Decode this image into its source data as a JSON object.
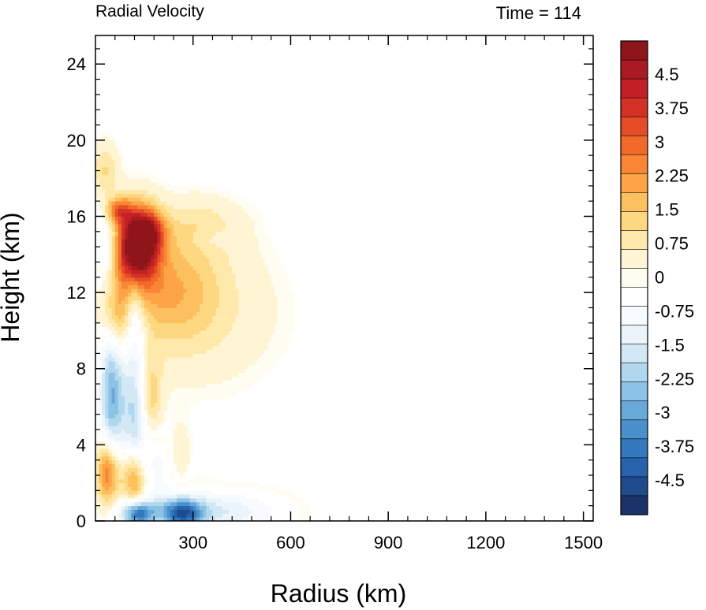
{
  "chart_data": {
    "type": "heatmap",
    "title_left": "Radial Velocity",
    "title_right": "Time = 114",
    "xlabel": "Radius (km)",
    "ylabel": "Height (km)",
    "xlim": [
      0,
      1530
    ],
    "ylim": [
      0,
      25.5
    ],
    "xticks": [
      300,
      600,
      900,
      1200,
      1500
    ],
    "yticks": [
      0,
      4,
      8,
      12,
      16,
      20,
      24
    ],
    "colorbar": {
      "range": [
        -5.25,
        5.25
      ],
      "step": 0.25,
      "tick_labels": [
        "4.5",
        "3.75",
        "3",
        "2.25",
        "1.5",
        "0.75",
        "0",
        "-0.75",
        "-1.5",
        "-2.25",
        "-3",
        "-3.75",
        "-4.5"
      ],
      "tick_values": [
        4.5,
        3.75,
        3,
        2.25,
        1.5,
        0.75,
        0,
        -0.75,
        -1.5,
        -2.25,
        -3,
        -3.75,
        -4.5
      ],
      "colors": [
        "#1a3368",
        "#1f4a8c",
        "#2763ad",
        "#3478bd",
        "#4a90cc",
        "#68a9da",
        "#8cc2e6",
        "#b0d7ee",
        "#d2e8f5",
        "#ebf4fa",
        "#f7fbfd",
        "#ffffff",
        "#fffdf2",
        "#fff5d4",
        "#ffe9aa",
        "#fed880",
        "#fdc05e",
        "#fca446",
        "#f98634",
        "#f26a2a",
        "#e44d26",
        "#d43126",
        "#c22026",
        "#ab1a22",
        "#8e1519"
      ]
    },
    "features": [
      {
        "r": 125,
        "z": 14.4,
        "sr": 45,
        "sz": 1.4,
        "v": 5.6
      },
      {
        "r": 165,
        "z": 15.2,
        "sr": 35,
        "sz": 0.8,
        "v": 2.5
      },
      {
        "r": 70,
        "z": 16.3,
        "sr": 30,
        "sz": 0.5,
        "v": 2.6
      },
      {
        "r": 220,
        "z": 12.2,
        "sr": 110,
        "sz": 2.0,
        "v": 1.6
      },
      {
        "r": 330,
        "z": 11.0,
        "sr": 160,
        "sz": 2.6,
        "v": 0.55
      },
      {
        "r": 320,
        "z": 15.5,
        "sr": 90,
        "sz": 1.0,
        "v": 0.7
      },
      {
        "r": 60,
        "z": 10.8,
        "sr": 30,
        "sz": 1.5,
        "v": 2.2
      },
      {
        "r": 30,
        "z": 18.3,
        "sr": 28,
        "sz": 1.0,
        "v": 1.2
      },
      {
        "r": 40,
        "z": 2.6,
        "sr": 25,
        "sz": 1.3,
        "v": 3.6
      },
      {
        "r": 120,
        "z": 2.2,
        "sr": 28,
        "sz": 1.2,
        "v": 3.1
      },
      {
        "r": 165,
        "z": 6.5,
        "sr": 25,
        "sz": 1.6,
        "v": 1.8
      },
      {
        "r": 255,
        "z": 3.2,
        "sr": 30,
        "sz": 1.3,
        "v": 1.1
      },
      {
        "r": 50,
        "z": 6.8,
        "sr": 26,
        "sz": 3.5,
        "v": -2.8
      },
      {
        "r": 125,
        "z": 5.8,
        "sr": 30,
        "sz": 3.0,
        "v": -2.2
      },
      {
        "r": 30,
        "z": 14.6,
        "sr": 30,
        "sz": 1.8,
        "v": -1.0
      },
      {
        "r": 120,
        "z": 11.5,
        "sr": 20,
        "sz": 1.5,
        "v": -1.0
      },
      {
        "r": 130,
        "z": 0.4,
        "sr": 35,
        "sz": 0.5,
        "v": -3.8
      },
      {
        "r": 265,
        "z": 0.4,
        "sr": 45,
        "sz": 0.55,
        "v": -3.6
      },
      {
        "r": 370,
        "z": 0.5,
        "sr": 130,
        "sz": 0.7,
        "v": -1.5
      },
      {
        "r": 210,
        "z": 2.8,
        "sr": 60,
        "sz": 1.4,
        "v": -1.0
      },
      {
        "r": 360,
        "z": 14.8,
        "sr": 50,
        "sz": 0.4,
        "v": -0.4
      }
    ]
  }
}
